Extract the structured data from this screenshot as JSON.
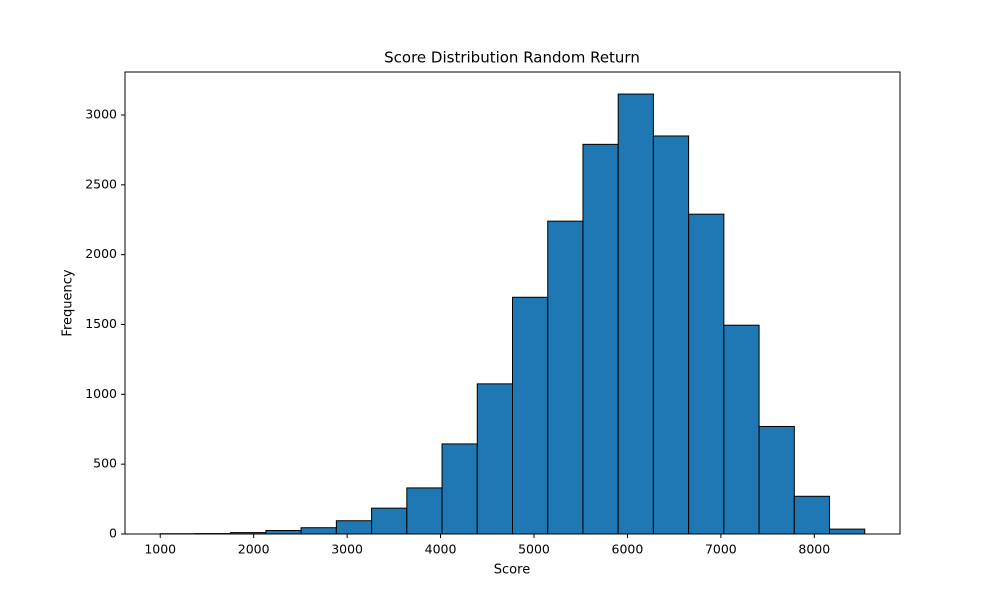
{
  "chart_data": {
    "type": "histogram",
    "title": "Score Distribution Random Return",
    "x_label": "Score",
    "y_label": "Frequency",
    "bins": [
      1000,
      1377,
      1754,
      2131,
      2508,
      2885,
      3262,
      3639,
      4016,
      4393,
      4770,
      5147,
      5524,
      5901,
      6278,
      6655,
      7032,
      7409,
      7786,
      8163,
      8540
    ],
    "values": [
      2,
      3,
      10,
      25,
      45,
      95,
      185,
      330,
      645,
      1075,
      1695,
      2240,
      2790,
      3150,
      2850,
      2290,
      1495,
      770,
      270,
      35
    ],
    "color": "#1f77b4",
    "edgecolor": "#000000",
    "xlim": [
      623,
      8917
    ],
    "ylim": [
      0,
      3308
    ],
    "xticks": [
      1000,
      2000,
      3000,
      4000,
      5000,
      6000,
      7000,
      8000
    ],
    "yticks": [
      0,
      500,
      1000,
      1500,
      2000,
      2500,
      3000
    ],
    "grid": false
  }
}
